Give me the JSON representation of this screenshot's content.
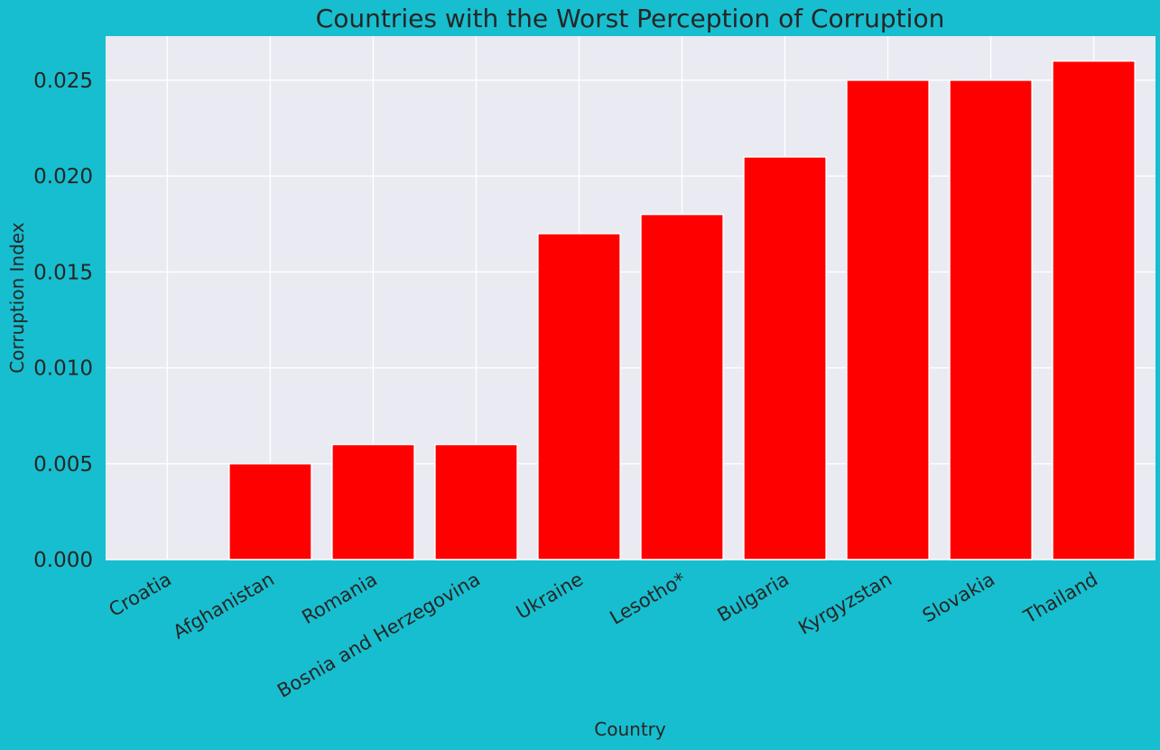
{
  "chart_data": {
    "type": "bar",
    "title": "Countries with the Worst Perception of Corruption",
    "xlabel": "Country",
    "ylabel": "Corruption Index",
    "categories": [
      "Croatia",
      "Afghanistan",
      "Romania",
      "Bosnia and Herzegovina",
      "Ukraine",
      "Lesotho*",
      "Bulgaria",
      "Kyrgyzstan",
      "Slovakia",
      "Thailand"
    ],
    "values": [
      0.0,
      0.005,
      0.006,
      0.006,
      0.017,
      0.018,
      0.021,
      0.025,
      0.025,
      0.026
    ],
    "ylim": [
      0,
      0.0273
    ],
    "yticks": [
      "0.000",
      "0.005",
      "0.010",
      "0.015",
      "0.020",
      "0.025"
    ],
    "grid": true,
    "bar_color": "#ff0000",
    "plot_background": "#eaeaf2",
    "figure_background": "#17becf"
  }
}
